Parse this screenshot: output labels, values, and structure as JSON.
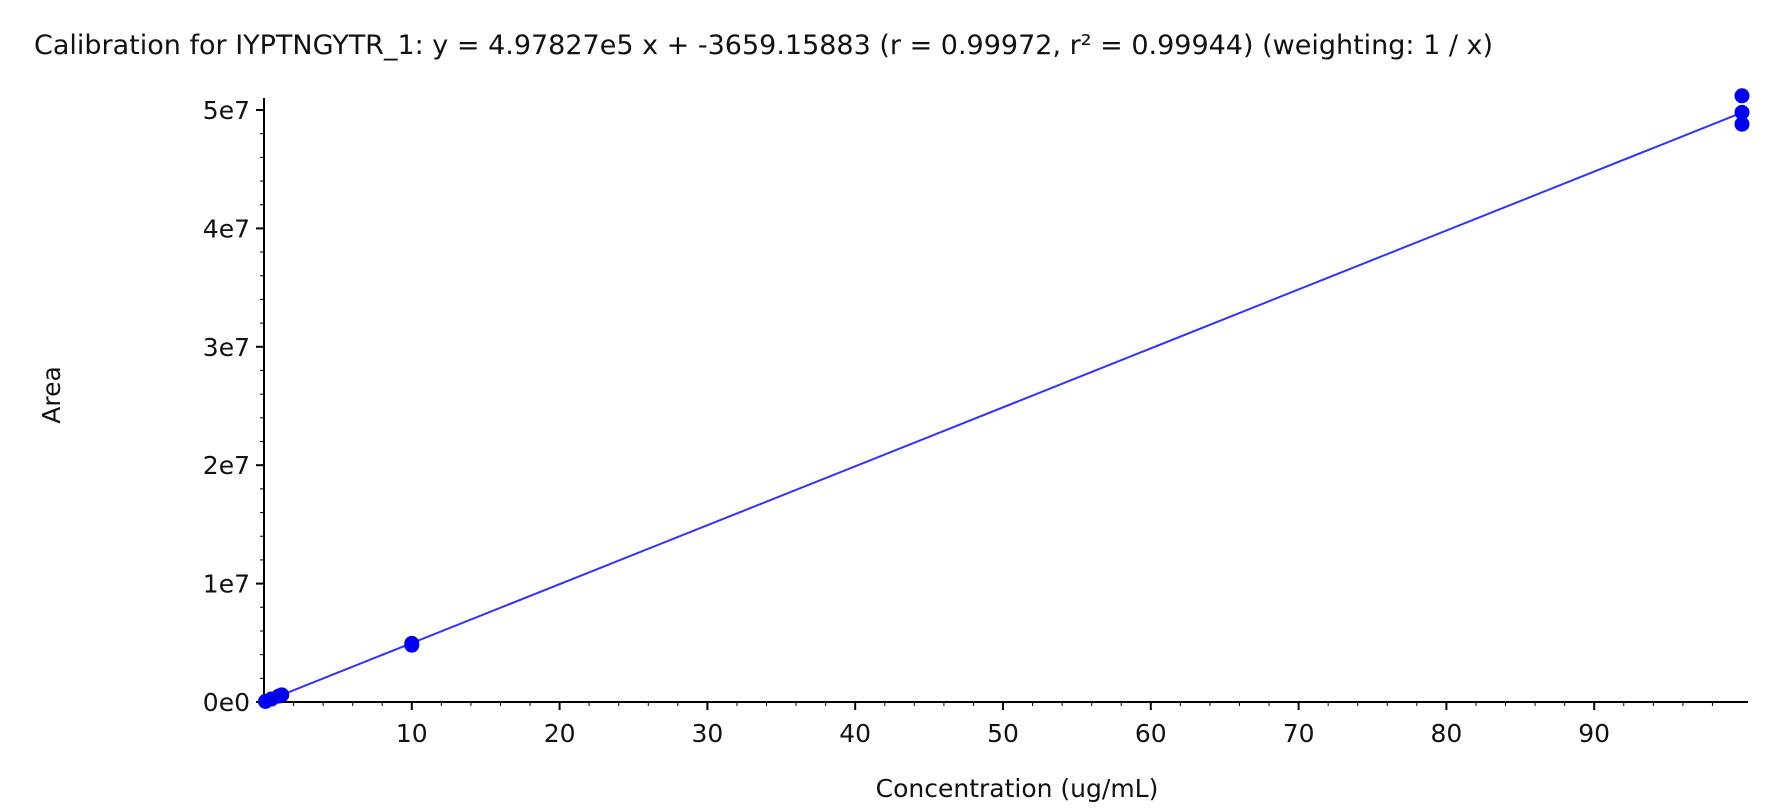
{
  "chart_data": {
    "type": "scatter",
    "title": "Calibration for IYPTNGYTR_1: y = 4.97827e5 x + -3659.15883 (r = 0.99972, r² = 0.99944)  (weighting: 1 / x)",
    "xlabel": "Concentration (ug/mL)",
    "ylabel": "Area",
    "xlim": [
      0,
      100
    ],
    "ylim": [
      0,
      50000000
    ],
    "x_ticks": [
      10,
      20,
      30,
      40,
      50,
      60,
      70,
      80,
      90
    ],
    "x_tick_labels": [
      "10",
      "20",
      "30",
      "40",
      "50",
      "60",
      "70",
      "80",
      "90"
    ],
    "y_ticks": [
      0,
      10000000,
      20000000,
      30000000,
      40000000,
      50000000
    ],
    "y_tick_labels": [
      "0e0",
      "1e7",
      "2e7",
      "3e7",
      "4e7",
      "5e7"
    ],
    "grid": false,
    "series": [
      {
        "values": [
          {
            "x": 0.1,
            "y": 50000
          },
          {
            "x": 0.5,
            "y": 250000
          },
          {
            "x": 1,
            "y": 500000
          },
          {
            "x": 1.2,
            "y": 600000
          },
          {
            "x": 10,
            "y": 4950000
          },
          {
            "x": 10,
            "y": 4800000
          },
          {
            "x": 100,
            "y": 51200000
          },
          {
            "x": 100,
            "y": 49800000
          },
          {
            "x": 100,
            "y": 48800000
          }
        ]
      }
    ],
    "fit_line": {
      "slope": 497827,
      "intercept": -3659.15883
    },
    "colors": {
      "points": "#0000ee",
      "line": "#3333ff",
      "axis": "#000000",
      "text": "#111111"
    }
  }
}
